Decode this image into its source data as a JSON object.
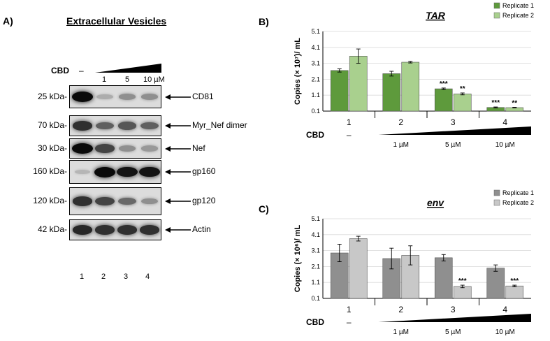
{
  "panel_a": {
    "label": "A)",
    "title": "Extracellular Vesicles",
    "cbd_label": "CBD",
    "cbd_dash": "–",
    "doses": [
      "1",
      "5",
      "10 µM"
    ],
    "lanes": [
      "1",
      "2",
      "3",
      "4"
    ],
    "blots": [
      {
        "kda": "25 kDa-",
        "protein": "CD81",
        "levels": [
          1.0,
          0.15,
          0.3,
          0.3
        ]
      },
      {
        "kda": "70 kDa-",
        "protein": "Myr_Nef dimer",
        "levels": [
          0.8,
          0.55,
          0.6,
          0.55
        ]
      },
      {
        "kda": "30 kDa-",
        "protein": "Nef",
        "levels": [
          1.0,
          0.7,
          0.3,
          0.25
        ]
      },
      {
        "kda": "160 kDa-",
        "protein": "gp160",
        "levels": [
          0.1,
          1.0,
          0.95,
          0.95
        ]
      },
      {
        "kda": "120 kDa-",
        "protein": "gp120",
        "levels": [
          0.8,
          0.7,
          0.5,
          0.3
        ]
      },
      {
        "kda": "42 kDa-",
        "protein": "Actin",
        "levels": [
          0.85,
          0.8,
          0.8,
          0.8
        ]
      }
    ]
  },
  "chart_data": [
    {
      "type": "bar",
      "panel": "B)",
      "title": "TAR",
      "ylabel": "Copies (× 10⁷)/ mL",
      "ylim": [
        0.1,
        5.1
      ],
      "yticks": [
        "0.1",
        "1.1",
        "2.1",
        "3.1",
        "4.1",
        "5.1"
      ],
      "categories": [
        "1",
        "2",
        "3",
        "4"
      ],
      "series": [
        {
          "name": "Replicate 1",
          "values": [
            2.65,
            2.45,
            1.5,
            0.33
          ],
          "errors": [
            0.1,
            0.15,
            0.05,
            0.03
          ],
          "color": "#5e9a3c"
        },
        {
          "name": "Replicate 2",
          "values": [
            3.55,
            3.17,
            1.18,
            0.32
          ],
          "errors": [
            0.45,
            0.05,
            0.06,
            0.02
          ],
          "color": "#a9d08e"
        }
      ],
      "significance": [
        [
          "",
          ""
        ],
        [
          "",
          ""
        ],
        [
          "***",
          "**"
        ],
        [
          "***",
          "**"
        ]
      ],
      "cbd_label": "CBD",
      "cbd_dash": "–",
      "doses": [
        "1 µM",
        "5 µM",
        "10 µM"
      ],
      "legend": "top-right"
    },
    {
      "type": "bar",
      "panel": "C)",
      "title": "env",
      "ylabel": "Copies (× 10⁶)/ mL",
      "ylim": [
        0.1,
        5.1
      ],
      "yticks": [
        "0.1",
        "1.1",
        "2.1",
        "3.1",
        "4.1",
        "5.1"
      ],
      "categories": [
        "1",
        "2",
        "3",
        "4"
      ],
      "series": [
        {
          "name": "Replicate 1",
          "values": [
            2.95,
            2.6,
            2.65,
            2.0
          ],
          "errors": [
            0.55,
            0.65,
            0.2,
            0.2
          ],
          "color": "#8f8f8f"
        },
        {
          "name": "Replicate 2",
          "values": [
            3.85,
            2.8,
            0.85,
            0.88
          ],
          "errors": [
            0.15,
            0.6,
            0.08,
            0.05
          ],
          "color": "#c8c8c8"
        }
      ],
      "significance": [
        [
          "",
          ""
        ],
        [
          "",
          ""
        ],
        [
          "",
          "***"
        ],
        [
          "",
          "***"
        ]
      ],
      "cbd_label": "CBD",
      "cbd_dash": "–",
      "doses": [
        "1 µM",
        "5 µM",
        "10 µM"
      ],
      "legend": "top-right"
    }
  ]
}
